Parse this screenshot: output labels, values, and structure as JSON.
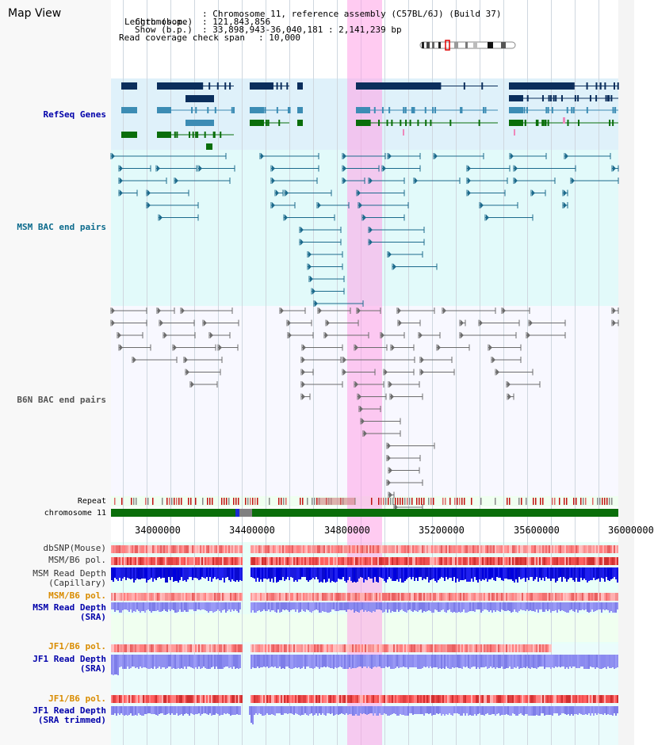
{
  "title": "Map View",
  "info": {
    "chromosome_label": "Chromosome",
    "chromosome_value": ": Chromosome 11, reference assembly (C57BL/6J) (Build 37)",
    "length_label": "Length (b.p.)",
    "length_value": ": 121,843,856",
    "show_label": "Show (b.p.)",
    "show_value": ": 33,898,943-36,040,181 : 2,141,239 bp",
    "coverage_label": "Read coverage check span",
    "coverage_value": ": 10,000"
  },
  "tracks": {
    "refseq": "RefSeq Genes",
    "msm_bac": "MSM BAC end pairs",
    "b6n_bac": "B6N BAC end pairs",
    "repeat": "Repeat",
    "chromosome": "chromosome 11",
    "dbsnp": "dbSNP(Mouse)",
    "msm_b6_pol_1": "MSM/B6 pol.",
    "msm_read_depth_cap_1": "MSM Read Depth",
    "msm_read_depth_cap_2": "(Capillary)",
    "msm_b6_pol_2": "MSM/B6 pol.",
    "msm_read_depth_sra_1": "MSM Read Depth",
    "msm_read_depth_sra_2": "(SRA)",
    "jf1_b6_pol_1": "JF1/B6 pol.",
    "jf1_read_depth_sra_1": "JF1 Read Depth",
    "jf1_read_depth_sra_2": "(SRA)",
    "jf1_b6_pol_2": "JF1/B6 pol.",
    "jf1_read_depth_trim_1": "JF1 Read Depth",
    "jf1_read_depth_trim_2": "(SRA trimmed)"
  },
  "axis": {
    "ticks": [
      "34000000",
      "34400000",
      "34800000",
      "35200000",
      "35600000",
      "36000000"
    ]
  },
  "colors": {
    "refseq_bg": "#e0f2fb",
    "msm_bg": "#e2fafa",
    "b6n_bg": "#f8f8ff",
    "navy": "#0b2e5c",
    "teal": "#3c8cb4",
    "green": "#0a6e0a",
    "msm_line": "#1c6a8c",
    "b6n_line": "#6c6c6c",
    "highlight": "#ffaaee",
    "msm_label": "#0b6a8c",
    "blue_label": "#0000aa",
    "orange_label": "#d98c00"
  }
}
